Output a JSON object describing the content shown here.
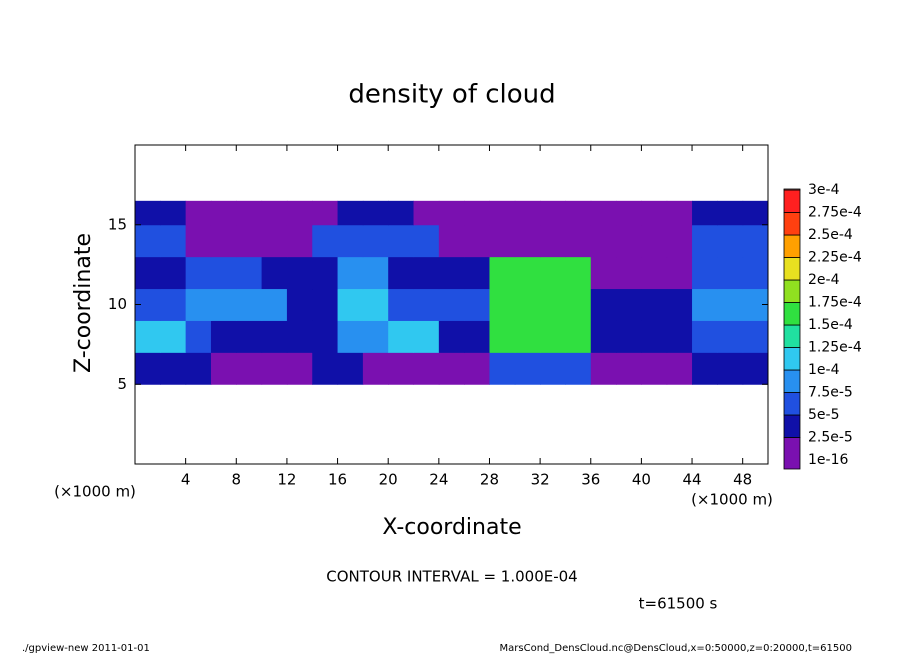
{
  "chart_data": {
    "type": "heatmap",
    "title": "density of cloud",
    "x_label": "X-coordinate",
    "y_label": "Z-coordinate",
    "x_unit": "(×1000 m)",
    "y_unit": "(×1000 m)",
    "xlim": [
      0,
      50
    ],
    "ylim": [
      0,
      20
    ],
    "xticks": [
      4,
      8,
      12,
      16,
      20,
      24,
      28,
      32,
      36,
      40,
      44,
      48
    ],
    "yticks": [
      5,
      10,
      15
    ],
    "x_edges": [
      0,
      2,
      4,
      6,
      8,
      10,
      12,
      14,
      16,
      18,
      20,
      22,
      24,
      26,
      28,
      30,
      32,
      34,
      36,
      38,
      40,
      42,
      44,
      46,
      48,
      50
    ],
    "y_edges": [
      5,
      7,
      9,
      11,
      13,
      15,
      16.5
    ],
    "values": [
      [
        3e-05,
        3e-05,
        3e-05,
        2e-05,
        2e-05,
        2e-05,
        2e-05,
        3e-05,
        3e-05,
        2e-05,
        2e-05,
        2e-05,
        2e-05,
        2e-05,
        5e-05,
        6e-05,
        6e-05,
        5e-05,
        2e-05,
        2e-05,
        2e-05,
        2e-05,
        3e-05,
        3e-05,
        3e-05
      ],
      [
        0.00011,
        0.00011,
        6e-05,
        4e-05,
        4e-05,
        4e-05,
        4e-05,
        4e-05,
        9e-05,
        9e-05,
        0.0001,
        0.0001,
        4e-05,
        4e-05,
        0.00017,
        0.00017,
        0.00017,
        0.00017,
        3e-05,
        3e-05,
        3e-05,
        3e-05,
        7e-05,
        7e-05,
        7e-05
      ],
      [
        5e-05,
        5e-05,
        8e-05,
        8e-05,
        8e-05,
        8e-05,
        4e-05,
        4e-05,
        0.00011,
        0.00011,
        6e-05,
        6e-05,
        5e-05,
        5e-05,
        0.00017,
        0.00017,
        0.00017,
        0.00017,
        3e-05,
        3e-05,
        3e-05,
        3e-05,
        8e-05,
        8e-05,
        8e-05
      ],
      [
        4e-05,
        4e-05,
        7e-05,
        7e-05,
        7e-05,
        3e-05,
        3e-05,
        3e-05,
        8e-05,
        8e-05,
        3e-05,
        3e-05,
        3e-05,
        3e-05,
        0.00016,
        0.00016,
        0.00016,
        0.00016,
        1e-05,
        1e-05,
        1e-05,
        1e-05,
        6e-05,
        6e-05,
        6e-05
      ],
      [
        5e-05,
        5e-05,
        1e-05,
        1e-05,
        1e-05,
        1e-05,
        1e-05,
        5e-05,
        5e-05,
        5e-05,
        5e-05,
        5e-05,
        1e-05,
        1e-05,
        1e-05,
        1e-05,
        1e-05,
        1e-05,
        1e-05,
        1e-05,
        1e-05,
        1e-05,
        5e-05,
        5e-05,
        5e-05
      ],
      [
        4e-05,
        4e-05,
        1e-05,
        1e-05,
        1e-05,
        1e-05,
        1e-05,
        1e-05,
        4e-05,
        4e-05,
        4e-05,
        1e-05,
        1e-05,
        1e-05,
        1e-05,
        1e-05,
        1e-05,
        1e-05,
        1e-05,
        1e-05,
        1e-05,
        1e-05,
        4e-05,
        4e-05,
        4e-05
      ]
    ],
    "colorbar": {
      "levels": [
        {
          "value": 1e-16,
          "label": "1e-16"
        },
        {
          "value": 2.5e-05,
          "label": "2.5e-5"
        },
        {
          "value": 5e-05,
          "label": "5e-5"
        },
        {
          "value": 7.5e-05,
          "label": "7.5e-5"
        },
        {
          "value": 0.0001,
          "label": "1e-4"
        },
        {
          "value": 0.000125,
          "label": "1.25e-4"
        },
        {
          "value": 0.00015,
          "label": "1.5e-4"
        },
        {
          "value": 0.000175,
          "label": "1.75e-4"
        },
        {
          "value": 0.0002,
          "label": "2e-4"
        },
        {
          "value": 0.000225,
          "label": "2.25e-4"
        },
        {
          "value": 0.00025,
          "label": "2.5e-4"
        },
        {
          "value": 0.000275,
          "label": "2.75e-4"
        },
        {
          "value": 0.0003,
          "label": "3e-4"
        }
      ],
      "colors": [
        "#7a10b0",
        "#1010a8",
        "#2050e0",
        "#2890f0",
        "#30c8f0",
        "#20e0a0",
        "#30e040",
        "#90e020",
        "#e8e020",
        "#ffa000",
        "#ff4010",
        "#ff2020",
        "#ff9090"
      ]
    },
    "annotations": [
      "CONTOUR INTERVAL = 1.000E-04",
      "t=61500 s",
      "./gpview-new  2011-01-01",
      "MarsCond_DensCloud.nc@DensCloud,x=0:50000,z=0:20000,t=61500"
    ]
  }
}
